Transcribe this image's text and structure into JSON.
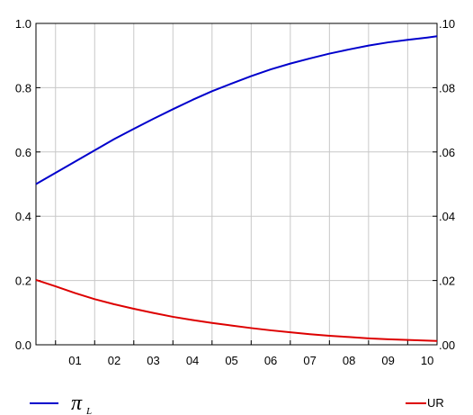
{
  "chart_data": {
    "type": "line",
    "x_tick_labels": [
      "01",
      "02",
      "03",
      "04",
      "05",
      "06",
      "07",
      "08",
      "09",
      "10"
    ],
    "x_range": [
      2000.5,
      2010.75
    ],
    "left_axis": {
      "ticks": [
        "0.0",
        "0.2",
        "0.4",
        "0.6",
        "0.8",
        "1.0"
      ],
      "ylim": [
        0,
        1
      ]
    },
    "right_axis": {
      "ticks": [
        ".00",
        ".02",
        ".04",
        ".06",
        ".08",
        ".10"
      ],
      "ylim": [
        0,
        0.1
      ]
    },
    "grid": true,
    "legend_position": "bottom",
    "series": [
      {
        "name": "π_L",
        "axis": "left",
        "color": "#0000cc",
        "x": [
          2000.5,
          2001.0,
          2001.5,
          2002.0,
          2002.5,
          2003.0,
          2003.5,
          2004.0,
          2004.5,
          2005.0,
          2005.5,
          2006.0,
          2006.5,
          2007.0,
          2007.5,
          2008.0,
          2008.5,
          2009.0,
          2009.5,
          2010.0,
          2010.5,
          2010.75
        ],
        "values": [
          0.5,
          0.535,
          0.57,
          0.605,
          0.64,
          0.672,
          0.703,
          0.733,
          0.762,
          0.789,
          0.813,
          0.836,
          0.857,
          0.875,
          0.891,
          0.906,
          0.919,
          0.931,
          0.941,
          0.949,
          0.956,
          0.96
        ]
      },
      {
        "name": "UR",
        "axis": "right",
        "color": "#dd0000",
        "x": [
          2000.5,
          2001.0,
          2001.5,
          2002.0,
          2002.5,
          2003.0,
          2003.5,
          2004.0,
          2004.5,
          2005.0,
          2005.5,
          2006.0,
          2006.5,
          2007.0,
          2007.5,
          2008.0,
          2008.5,
          2009.0,
          2009.5,
          2010.0,
          2010.5,
          2010.75
        ],
        "values": [
          0.0202,
          0.0182,
          0.0161,
          0.0142,
          0.0126,
          0.0112,
          0.0099,
          0.0087,
          0.0077,
          0.0068,
          0.006,
          0.0052,
          0.0045,
          0.0039,
          0.0033,
          0.0028,
          0.0024,
          0.002,
          0.0017,
          0.0015,
          0.0013,
          0.0012
        ]
      }
    ]
  },
  "legend": {
    "pi_symbol": "π",
    "pi_subscript": "L",
    "ur_label": "UR"
  }
}
